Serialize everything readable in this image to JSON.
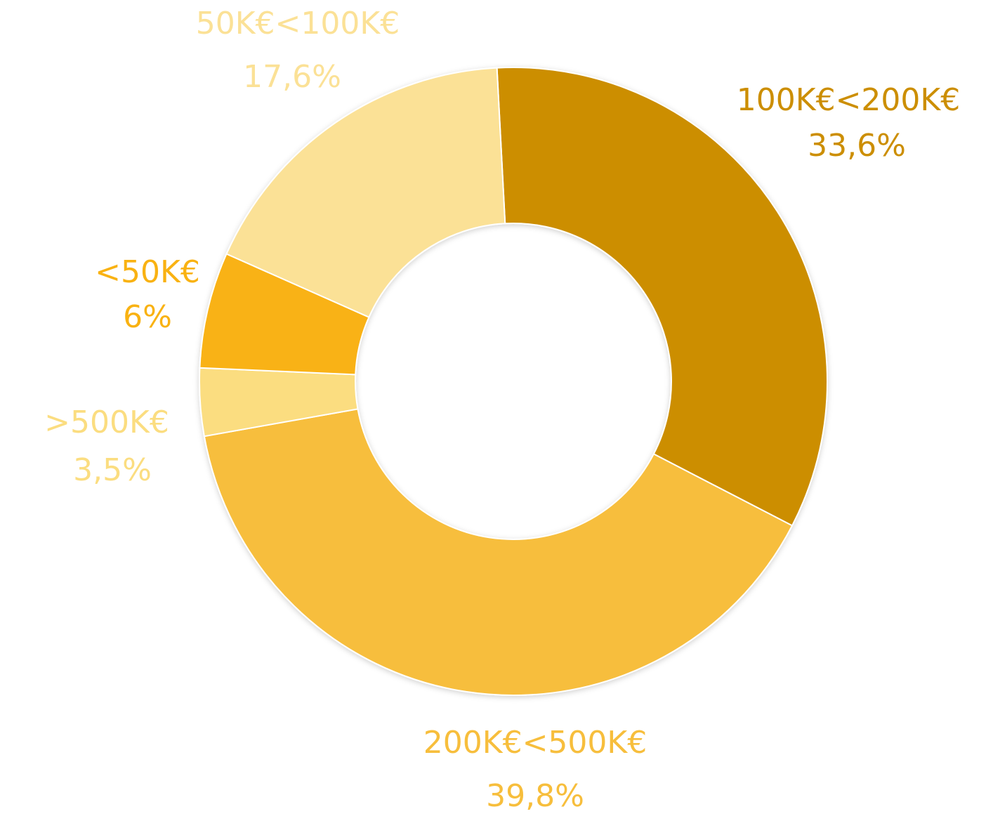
{
  "chart_data": {
    "type": "donut",
    "categories": [
      "100K€<200K€",
      "200K€<500K€",
      ">500K€",
      "<50K€",
      "50K€<100K€"
    ],
    "values": [
      33.6,
      39.8,
      3.5,
      6,
      17.6
    ],
    "value_labels": [
      "33,6%",
      "39,8%",
      "3,5%",
      "6%",
      "17,6%"
    ],
    "colors": [
      "#cc8e00",
      "#f7be3c",
      "#fbdd80",
      "#f9b212",
      "#fbe196"
    ]
  }
}
